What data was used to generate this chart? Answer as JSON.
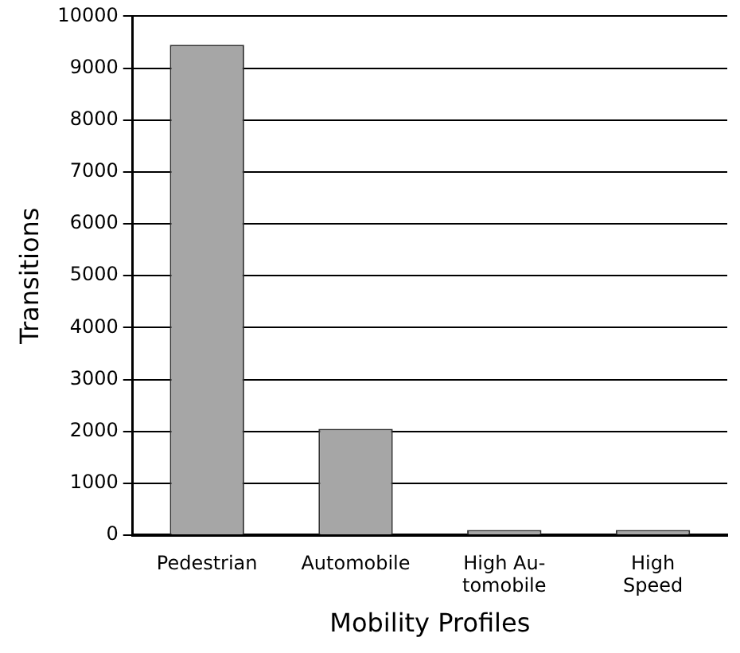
{
  "chart_data": {
    "type": "bar",
    "xlabel": "Mobility Profiles",
    "ylabel": "Transitions",
    "categories": [
      "Pedestrian",
      "Automobile",
      "High Au-\ntomobile",
      "High\nSpeed"
    ],
    "values": [
      9450,
      2050,
      100,
      100
    ],
    "color": "#a6a6a6",
    "ylim": [
      0,
      10000
    ],
    "yticks": [
      0,
      1000,
      2000,
      3000,
      4000,
      5000,
      6000,
      7000,
      8000,
      9000,
      10000
    ],
    "grid": "y"
  }
}
